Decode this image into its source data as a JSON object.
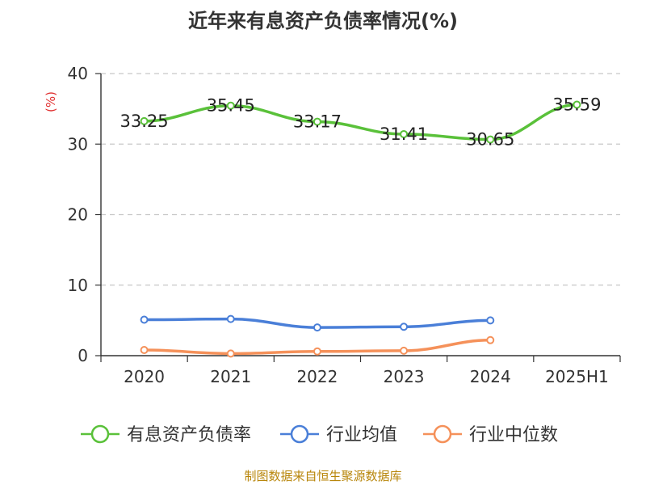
{
  "chart_data": {
    "type": "line",
    "title": "近年来有息资产负债率情况(%)",
    "ylabel": "(%)",
    "xlabel": "",
    "categories": [
      "2020",
      "2021",
      "2022",
      "2023",
      "2024",
      "2025H1"
    ],
    "ylim": [
      0,
      40
    ],
    "yticks": [
      0,
      10,
      20,
      30,
      40
    ],
    "grid": "horizontal-dashed",
    "legend_position": "bottom",
    "series": [
      {
        "name": "有息资产负债率",
        "color": "#5ac13a",
        "values": [
          33.25,
          35.45,
          33.17,
          31.41,
          30.65,
          35.59
        ],
        "labels": [
          "33.25",
          "35.45",
          "33.17",
          "31.41",
          "30.65",
          "35.59"
        ]
      },
      {
        "name": "行业均值",
        "color": "#4a7fd8",
        "values": [
          5.1,
          5.2,
          4.0,
          4.1,
          5.0,
          null
        ]
      },
      {
        "name": "行业中位数",
        "color": "#f5915a",
        "values": [
          0.8,
          0.3,
          0.6,
          0.7,
          2.2,
          null
        ]
      }
    ],
    "source": "制图数据来自恒生聚源数据库"
  }
}
